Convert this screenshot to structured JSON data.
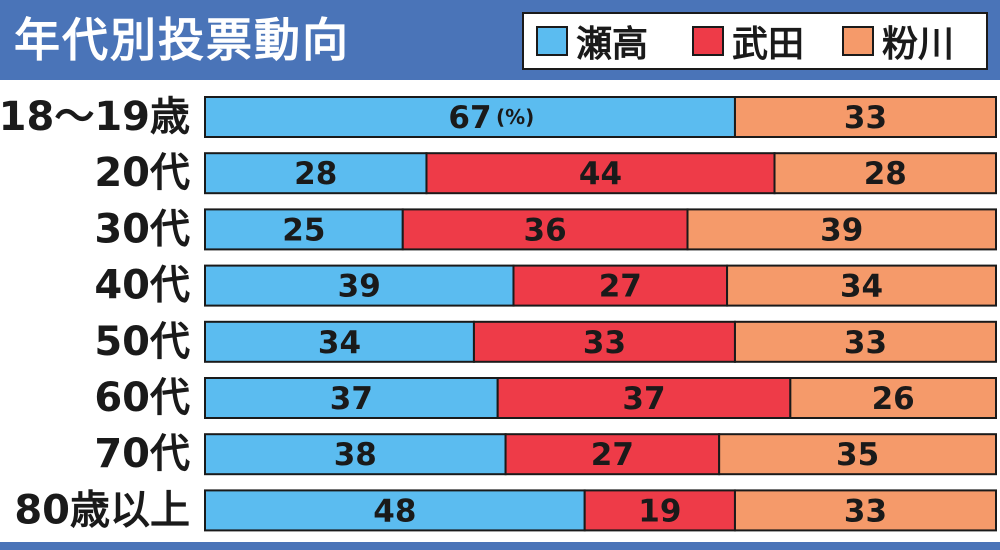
{
  "chart_data": {
    "type": "bar",
    "orientation": "horizontal",
    "stacked": true,
    "title": "年代別投票動向",
    "unit": "(%)",
    "categories": [
      "18〜19歳",
      "20代",
      "30代",
      "40代",
      "50代",
      "60代",
      "70代",
      "80歳以上"
    ],
    "series": [
      {
        "name": "瀬高",
        "color": "#5bbcf0",
        "values": [
          67,
          28,
          25,
          39,
          34,
          37,
          38,
          48
        ]
      },
      {
        "name": "武田",
        "color": "#ee3b48",
        "values": [
          0,
          44,
          36,
          27,
          33,
          37,
          27,
          19
        ]
      },
      {
        "name": "粉川",
        "color": "#f59a6a",
        "values": [
          33,
          28,
          39,
          34,
          33,
          26,
          35,
          33
        ]
      }
    ],
    "xlim": [
      0,
      100
    ],
    "grid": false,
    "legend_position": "top-right"
  }
}
